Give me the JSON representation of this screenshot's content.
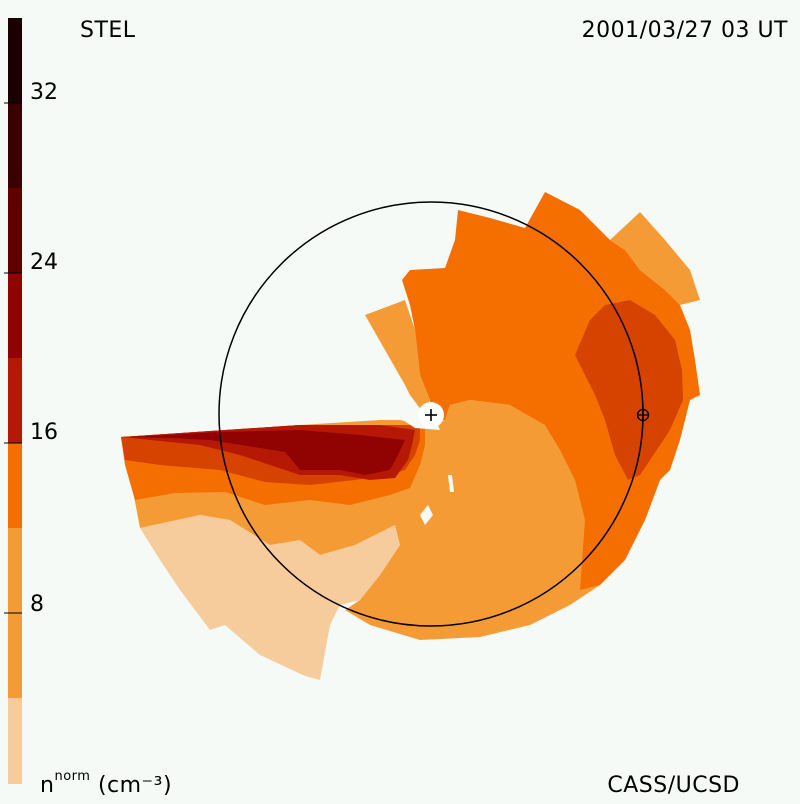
{
  "header": {
    "instrument": "STEL",
    "timestamp": "2001/03/27 03 UT"
  },
  "footer": {
    "unit_base": "n",
    "unit_sup": "norm",
    "unit_rest": "(cm⁻³)",
    "credit": "CASS/UCSD"
  },
  "colorbar": {
    "ticks": [
      "8",
      "16",
      "24",
      "32"
    ],
    "levels": [
      "#f7cc9d",
      "#f59b35",
      "#f46f00",
      "#d64300",
      "#b51906",
      "#910303",
      "#620000",
      "#3a0000",
      "#1a0000"
    ]
  },
  "colors": {
    "background": "#f5faf7",
    "marker": "#000000"
  },
  "icons": {
    "sun_marker": "plus-in-white-circle-icon",
    "earth_marker": "earth-symbol-icon"
  }
}
